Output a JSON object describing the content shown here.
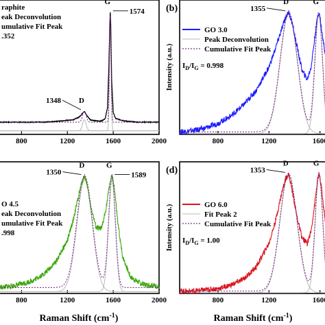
{
  "xlabel": "Raman Shift (cm",
  "xlabel_exp": "-1",
  "xlabel_close": ")",
  "chart_data": [
    {
      "type": "line",
      "panel": "(a)",
      "visible_label": "",
      "xlim": [
        600,
        2000
      ],
      "xticks": [
        800,
        1200,
        1600,
        2000
      ],
      "ylabel": "",
      "legend": [
        "raphite",
        "eak Deconvolution",
        "umulative Fit Peak"
      ],
      "ratio_text": ".352",
      "peaks": {
        "D": {
          "x": 1348,
          "label": "1348"
        },
        "G": {
          "x": 1574,
          "label": "1574"
        }
      },
      "series": [
        {
          "name": "raphite",
          "color": "#000000",
          "x": [
            600,
            800,
            1000,
            1150,
            1250,
            1300,
            1330,
            1348,
            1365,
            1400,
            1450,
            1500,
            1530,
            1550,
            1562,
            1570,
            1574,
            1578,
            1586,
            1600,
            1620,
            1700,
            1800,
            2000
          ],
          "y": [
            0.1,
            0.1,
            0.1,
            0.11,
            0.12,
            0.14,
            0.17,
            0.19,
            0.16,
            0.12,
            0.11,
            0.11,
            0.13,
            0.22,
            0.55,
            0.9,
            1.0,
            0.9,
            0.45,
            0.18,
            0.13,
            0.11,
            0.1,
            0.1
          ]
        }
      ]
    },
    {
      "type": "line",
      "panel": "(b)",
      "visible_label": "(b)",
      "xlim": [
        500,
        1650
      ],
      "xticks": [
        800,
        1200,
        1600
      ],
      "ylabel": "Intensity (a.u.)",
      "legend": [
        "GO 3.0",
        "Peak Deconvolution",
        "Cumulative Fit Peak"
      ],
      "ratio_text": "I_D/I_G = 0.998",
      "ratio_main": "I",
      "ratio_sub1": "D",
      "ratio_mid": "/I",
      "ratio_sub2": "G",
      "ratio_value": " = 0.998",
      "peaks": {
        "D": {
          "x": 1355,
          "label": "1355"
        },
        "G": {
          "x": 1590,
          "label": ""
        }
      },
      "series": [
        {
          "name": "GO 3.0",
          "color": "#1a1aff",
          "x": [
            500,
            600,
            700,
            800,
            900,
            1000,
            1100,
            1200,
            1250,
            1300,
            1330,
            1355,
            1380,
            1420,
            1460,
            1500,
            1530,
            1560,
            1580,
            1590,
            1600,
            1620,
            1650
          ],
          "y": [
            0.02,
            0.03,
            0.05,
            0.09,
            0.15,
            0.24,
            0.36,
            0.55,
            0.7,
            0.86,
            0.96,
            1.0,
            0.92,
            0.72,
            0.52,
            0.45,
            0.55,
            0.8,
            0.96,
            1.0,
            0.96,
            0.8,
            0.6
          ]
        }
      ]
    },
    {
      "type": "line",
      "panel": "(c)",
      "visible_label": "",
      "xlim": [
        600,
        2000
      ],
      "xticks": [
        800,
        1200,
        1600,
        2000
      ],
      "ylabel": "",
      "legend": [
        "O 4.5",
        "eak Deconvolution",
        "umulative Fit Peak"
      ],
      "ratio_text": ".998",
      "peaks": {
        "D": {
          "x": 1350,
          "label": "1350"
        },
        "G": {
          "x": 1589,
          "label": "1589"
        }
      },
      "series": [
        {
          "name": "O 4.5",
          "color": "#3fa80f",
          "x": [
            600,
            700,
            800,
            900,
            1000,
            1100,
            1200,
            1250,
            1300,
            1330,
            1350,
            1370,
            1400,
            1450,
            1500,
            1540,
            1570,
            1589,
            1610,
            1640,
            1680,
            1750,
            1850,
            2000
          ],
          "y": [
            0.05,
            0.06,
            0.08,
            0.11,
            0.17,
            0.27,
            0.45,
            0.62,
            0.84,
            0.96,
            1.0,
            0.94,
            0.76,
            0.56,
            0.55,
            0.74,
            0.94,
            1.0,
            0.9,
            0.6,
            0.32,
            0.14,
            0.08,
            0.06
          ]
        }
      ]
    },
    {
      "type": "line",
      "panel": "(d)",
      "visible_label": "(d)",
      "xlim": [
        500,
        1650
      ],
      "xticks": [
        800,
        1200,
        1600
      ],
      "ylabel": "Intensity (a.u.)",
      "legend": [
        "GO 6.0",
        "Fit Peak 2",
        "Cumulative Fit Peak"
      ],
      "ratio_text": "I_D/I_G = 1.00",
      "ratio_main": "I",
      "ratio_sub1": "D",
      "ratio_mid": "/I",
      "ratio_sub2": "G",
      "ratio_value": " = 1.00",
      "peaks": {
        "D": {
          "x": 1353,
          "label": "1353"
        },
        "G": {
          "x": 1592,
          "label": ""
        }
      },
      "series": [
        {
          "name": "GO 6.0",
          "color": "#d8141c",
          "x": [
            500,
            600,
            700,
            800,
            900,
            1000,
            1100,
            1200,
            1250,
            1300,
            1330,
            1353,
            1375,
            1420,
            1460,
            1500,
            1530,
            1560,
            1580,
            1592,
            1610,
            1630,
            1650
          ],
          "y": [
            0.02,
            0.02,
            0.03,
            0.04,
            0.07,
            0.12,
            0.22,
            0.42,
            0.6,
            0.84,
            0.96,
            1.0,
            0.9,
            0.64,
            0.46,
            0.42,
            0.52,
            0.76,
            0.94,
            1.0,
            0.9,
            0.7,
            0.55
          ]
        }
      ]
    }
  ]
}
